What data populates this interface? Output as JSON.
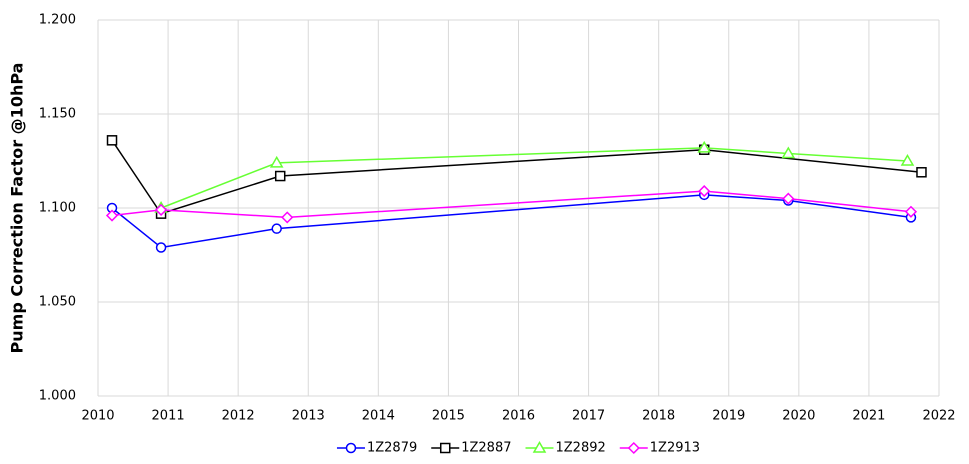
{
  "chart_data": {
    "type": "line",
    "ylabel": "Pump Correction Factor @10hPa",
    "xlim": [
      2010,
      2022
    ],
    "xticks": [
      2010,
      2011,
      2012,
      2013,
      2014,
      2015,
      2016,
      2017,
      2018,
      2019,
      2020,
      2021,
      2022
    ],
    "ylim": [
      1.0,
      1.2
    ],
    "yticks": [
      {
        "value": 1.0,
        "label": "1.000"
      },
      {
        "value": 1.05,
        "label": "1.050"
      },
      {
        "value": 1.1,
        "label": "1.100"
      },
      {
        "value": 1.15,
        "label": "1.150"
      },
      {
        "value": 1.2,
        "label": "1.200"
      }
    ],
    "grid": true,
    "legend": "bottom",
    "series": [
      {
        "name": "1Z2879",
        "color": "#0000ff",
        "marker": "circle",
        "x": [
          2010.2,
          2010.9,
          2012.55,
          2018.65,
          2019.85,
          2021.6
        ],
        "values": [
          1.1,
          1.079,
          1.089,
          1.107,
          1.104,
          1.095
        ]
      },
      {
        "name": "1Z2887",
        "color": "#000000",
        "marker": "square",
        "x": [
          2010.2,
          2010.9,
          2012.6,
          2018.65,
          2021.75
        ],
        "values": [
          1.136,
          1.097,
          1.117,
          1.131,
          1.119
        ]
      },
      {
        "name": "1Z2892",
        "color": "#66ff33",
        "marker": "triangle",
        "x": [
          2010.9,
          2012.55,
          2018.65,
          2019.85,
          2021.55
        ],
        "values": [
          1.1,
          1.124,
          1.132,
          1.129,
          1.125
        ]
      },
      {
        "name": "1Z2913",
        "color": "#ff00ff",
        "marker": "diamond",
        "x": [
          2010.2,
          2010.9,
          2012.7,
          2018.65,
          2019.85,
          2021.6
        ],
        "values": [
          1.096,
          1.099,
          1.095,
          1.109,
          1.105,
          1.098
        ]
      }
    ]
  }
}
